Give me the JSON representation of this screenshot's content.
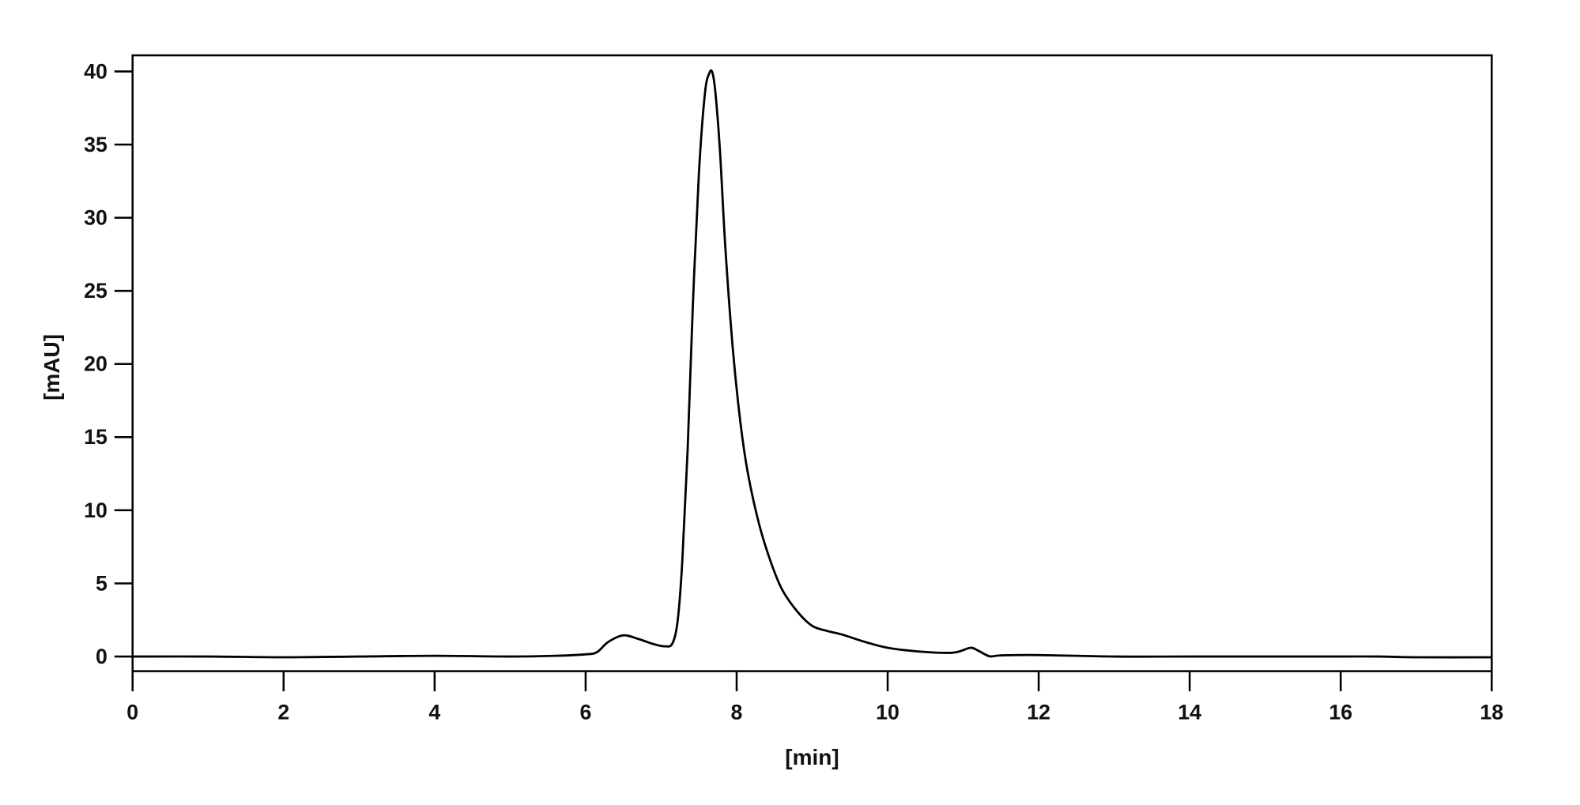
{
  "chart_data": {
    "type": "line",
    "title": "",
    "xlabel": "[min]",
    "ylabel": "[mAU]",
    "xlim": [
      0,
      18
    ],
    "ylim": [
      -1,
      41.1
    ],
    "xticks": [
      0,
      2,
      4,
      6,
      8,
      10,
      12,
      14,
      16,
      18
    ],
    "yticks": [
      0,
      5,
      10,
      15,
      20,
      25,
      30,
      35,
      40
    ],
    "grid": false,
    "line_color": "#000000",
    "series": [
      {
        "x": [
          0,
          1,
          2,
          3,
          4,
          5,
          5.6,
          6.0,
          6.15,
          6.3,
          6.5,
          6.7,
          6.9,
          7.05,
          7.15,
          7.22,
          7.28,
          7.35,
          7.42,
          7.5,
          7.58,
          7.64,
          7.68,
          7.72,
          7.78,
          7.85,
          7.95,
          8.05,
          8.15,
          8.3,
          8.45,
          8.6,
          8.8,
          9.0,
          9.2,
          9.4,
          9.7,
          10.0,
          10.4,
          10.8,
          10.95,
          11.1,
          11.2,
          11.35,
          11.5,
          12,
          13,
          14,
          15,
          16,
          16.5,
          17,
          18
        ],
        "y": [
          0,
          0,
          -0.05,
          0,
          0.05,
          0,
          0.05,
          0.15,
          0.3,
          1.0,
          1.45,
          1.2,
          0.85,
          0.7,
          0.9,
          2.5,
          6.5,
          14,
          24,
          33,
          38.5,
          39.9,
          39.9,
          38.5,
          34.5,
          28,
          21,
          16,
          12.5,
          9.0,
          6.5,
          4.6,
          3.1,
          2.1,
          1.75,
          1.5,
          1.0,
          0.6,
          0.35,
          0.25,
          0.35,
          0.6,
          0.4,
          0.02,
          0.08,
          0.1,
          0.0,
          0.0,
          0.0,
          0.0,
          0.0,
          -0.05,
          -0.05
        ]
      }
    ]
  }
}
